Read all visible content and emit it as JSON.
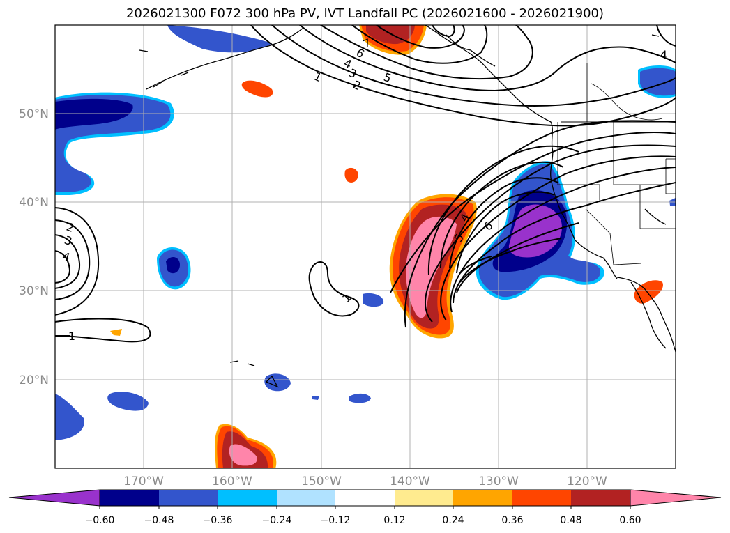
{
  "title": "2026021300 F072 300 hPa PV, IVT Landfall PC (2026021600 - 2026021900)",
  "map": {
    "lat_labels": [
      "50°N",
      "40°N",
      "30°N",
      "20°N"
    ],
    "lon_labels": [
      "170°W",
      "160°W",
      "150°W",
      "140°W",
      "130°W",
      "120°W"
    ]
  },
  "contour_labels": [
    "7",
    "6",
    "5",
    "4",
    "3",
    "2",
    "1",
    "4",
    "2",
    "3",
    "4",
    "1",
    "1",
    "4",
    "5",
    "6"
  ],
  "colorbar": {
    "colors": [
      "#9932cc",
      "#00008b",
      "#3355cc",
      "#00bfff",
      "#b0e2ff",
      "#ffffff",
      "#ffeb8f",
      "#ffa500",
      "#ff4500",
      "#b22222",
      "#ff85aa"
    ],
    "tick_labels": [
      "−0.60",
      "−0.48",
      "−0.36",
      "−0.24",
      "−0.12",
      "0.12",
      "0.24",
      "0.36",
      "0.48",
      "0.60"
    ]
  }
}
